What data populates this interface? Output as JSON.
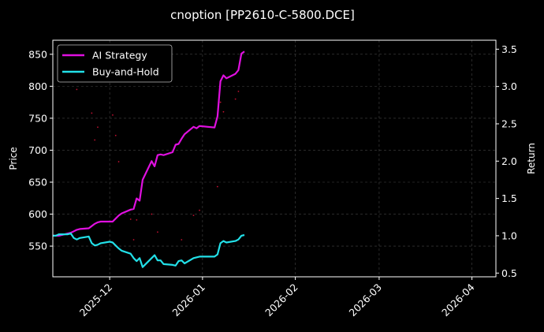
{
  "chart_data": {
    "type": "line",
    "title": "cnoption [PP2610-C-5800.DCE]",
    "xlabel": "",
    "ylabel": "Price",
    "y2label": "Return",
    "xlim": [
      "2025-11-12",
      "2026-04-09"
    ],
    "ylim": [
      502,
      872
    ],
    "y2lim": [
      0.45,
      3.62
    ],
    "x_ticks": [
      "2025-12",
      "2026-01",
      "2026-02",
      "2026-03",
      "2026-04"
    ],
    "y_ticks": [
      550,
      600,
      650,
      700,
      750,
      800,
      850
    ],
    "y2_ticks": [
      0.5,
      1.0,
      1.5,
      2.0,
      2.5,
      3.0,
      3.5
    ],
    "grid": true,
    "legend_position": "top-left",
    "colors": {
      "background": "#000000",
      "ai_strategy": "#e010e0",
      "buy_and_hold": "#22e0e8",
      "price_points": "#c01030",
      "grid": "#444444"
    },
    "series": [
      {
        "name": "AI Strategy",
        "axis": "right",
        "points": [
          [
            "2025-11-12",
            1.0
          ],
          [
            "2025-11-14",
            1.0
          ],
          [
            "2025-11-17",
            1.03
          ],
          [
            "2025-11-18",
            1.04
          ],
          [
            "2025-11-19",
            1.06
          ],
          [
            "2025-11-20",
            1.08
          ],
          [
            "2025-11-21",
            1.09
          ],
          [
            "2025-11-24",
            1.1
          ],
          [
            "2025-11-25",
            1.13
          ],
          [
            "2025-11-26",
            1.16
          ],
          [
            "2025-11-27",
            1.18
          ],
          [
            "2025-11-28",
            1.19
          ],
          [
            "2025-12-01",
            1.19
          ],
          [
            "2025-12-02",
            1.19
          ],
          [
            "2025-12-03",
            1.23
          ],
          [
            "2025-12-04",
            1.27
          ],
          [
            "2025-12-05",
            1.3
          ],
          [
            "2025-12-08",
            1.35
          ],
          [
            "2025-12-09",
            1.36
          ],
          [
            "2025-12-10",
            1.5
          ],
          [
            "2025-12-11",
            1.47
          ],
          [
            "2025-12-12",
            1.75
          ],
          [
            "2025-12-15",
            2.0
          ],
          [
            "2025-12-16",
            1.93
          ],
          [
            "2025-12-17",
            2.08
          ],
          [
            "2025-12-18",
            2.09
          ],
          [
            "2025-12-19",
            2.08
          ],
          [
            "2025-12-22",
            2.12
          ],
          [
            "2025-12-23",
            2.22
          ],
          [
            "2025-12-24",
            2.23
          ],
          [
            "2025-12-25",
            2.3
          ],
          [
            "2025-12-26",
            2.36
          ],
          [
            "2025-12-29",
            2.46
          ],
          [
            "2025-12-30",
            2.44
          ],
          [
            "2025-12-31",
            2.47
          ],
          [
            "2026-01-05",
            2.45
          ],
          [
            "2026-01-06",
            2.6
          ],
          [
            "2026-01-07",
            3.07
          ],
          [
            "2026-01-08",
            3.15
          ],
          [
            "2026-01-09",
            3.11
          ],
          [
            "2026-01-12",
            3.17
          ],
          [
            "2026-01-13",
            3.22
          ],
          [
            "2026-01-14",
            3.44
          ],
          [
            "2026-01-15",
            3.47
          ]
        ]
      },
      {
        "name": "Buy-and-Hold",
        "axis": "right",
        "points": [
          [
            "2025-11-12",
            1.0
          ],
          [
            "2025-11-13",
            1.0
          ],
          [
            "2025-11-14",
            1.02
          ],
          [
            "2025-11-17",
            1.02
          ],
          [
            "2025-11-18",
            1.03
          ],
          [
            "2025-11-19",
            0.97
          ],
          [
            "2025-11-20",
            0.95
          ],
          [
            "2025-11-21",
            0.97
          ],
          [
            "2025-11-24",
            0.99
          ],
          [
            "2025-11-25",
            0.9
          ],
          [
            "2025-11-26",
            0.87
          ],
          [
            "2025-11-27",
            0.88
          ],
          [
            "2025-11-28",
            0.9
          ],
          [
            "2025-12-01",
            0.92
          ],
          [
            "2025-12-02",
            0.91
          ],
          [
            "2025-12-03",
            0.87
          ],
          [
            "2025-12-04",
            0.83
          ],
          [
            "2025-12-05",
            0.8
          ],
          [
            "2025-12-08",
            0.76
          ],
          [
            "2025-12-09",
            0.7
          ],
          [
            "2025-12-10",
            0.66
          ],
          [
            "2025-12-11",
            0.7
          ],
          [
            "2025-12-12",
            0.58
          ],
          [
            "2025-12-15",
            0.7
          ],
          [
            "2025-12-16",
            0.74
          ],
          [
            "2025-12-17",
            0.67
          ],
          [
            "2025-12-18",
            0.67
          ],
          [
            "2025-12-19",
            0.62
          ],
          [
            "2025-12-22",
            0.61
          ],
          [
            "2025-12-23",
            0.6
          ],
          [
            "2025-12-24",
            0.66
          ],
          [
            "2025-12-25",
            0.67
          ],
          [
            "2025-12-26",
            0.63
          ],
          [
            "2025-12-29",
            0.7
          ],
          [
            "2025-12-31",
            0.72
          ],
          [
            "2026-01-05",
            0.72
          ],
          [
            "2026-01-06",
            0.75
          ],
          [
            "2026-01-07",
            0.9
          ],
          [
            "2026-01-08",
            0.93
          ],
          [
            "2026-01-09",
            0.91
          ],
          [
            "2026-01-12",
            0.93
          ],
          [
            "2026-01-13",
            0.95
          ],
          [
            "2026-01-14",
            1.0
          ],
          [
            "2026-01-15",
            1.01
          ]
        ]
      },
      {
        "name": "Price",
        "axis": "left",
        "style": "points",
        "points": [
          [
            "2025-11-20",
            795
          ],
          [
            "2025-11-25",
            758
          ],
          [
            "2025-11-26",
            716
          ],
          [
            "2025-11-27",
            736
          ],
          [
            "2025-12-02",
            755
          ],
          [
            "2025-12-03",
            723
          ],
          [
            "2025-12-04",
            682
          ],
          [
            "2025-12-08",
            592
          ],
          [
            "2025-12-09",
            560
          ],
          [
            "2025-12-10",
            591
          ],
          [
            "2025-12-15",
            600
          ],
          [
            "2025-12-17",
            572
          ],
          [
            "2025-12-25",
            560
          ],
          [
            "2025-12-29",
            598
          ],
          [
            "2025-12-31",
            606
          ],
          [
            "2026-01-06",
            643
          ],
          [
            "2026-01-07",
            775
          ],
          [
            "2026-01-08",
            760
          ],
          [
            "2026-01-12",
            780
          ],
          [
            "2026-01-13",
            792
          ]
        ]
      }
    ]
  }
}
